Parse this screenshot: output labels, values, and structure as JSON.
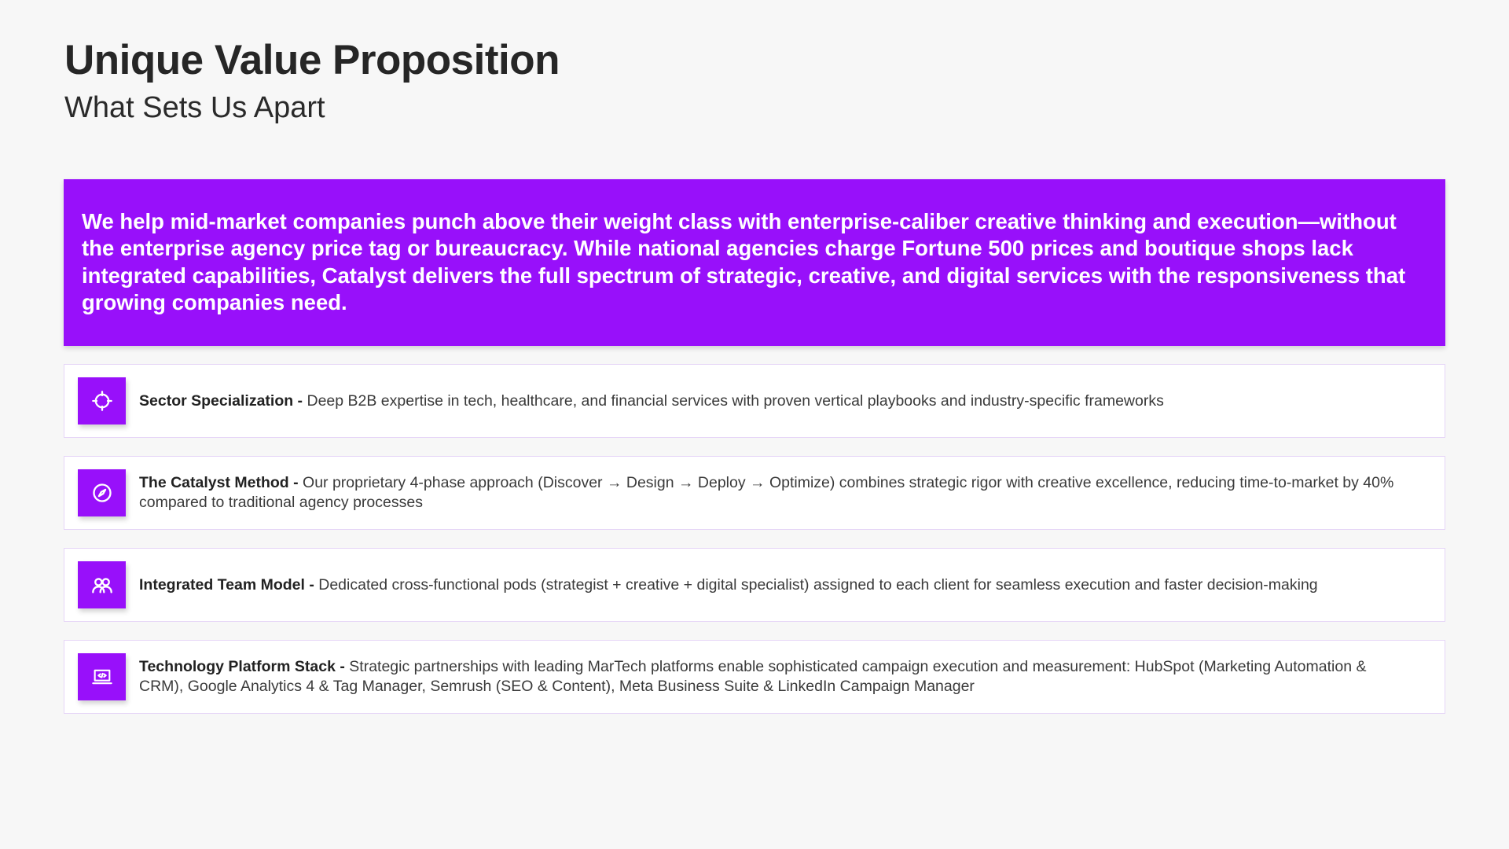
{
  "header": {
    "title": "Unique Value Proposition",
    "subtitle": "What Sets Us Apart"
  },
  "hero": {
    "text": "We help mid-market companies punch above their weight class with enterprise-caliber creative thinking and execution—without the enterprise agency price tag or bureaucracy. While national agencies charge Fortune 500 prices and boutique shops lack integrated capabilities, Catalyst delivers the full spectrum of strategic, creative, and digital services with the responsiveness that growing companies need.",
    "background": "#9810fa"
  },
  "features": [
    {
      "icon": "crosshair-icon",
      "title": "Sector Specialization - ",
      "text": "Deep B2B expertise in tech, healthcare, and financial services with proven vertical playbooks and industry-specific frameworks"
    },
    {
      "icon": "compass-icon",
      "title": "The Catalyst Method - ",
      "text": "Our proprietary 4-phase approach (Discover → Design → Deploy → Optimize) combines strategic rigor with creative excellence, reducing time-to-market by 40% compared to traditional agency processes"
    },
    {
      "icon": "users-icon",
      "title": "Integrated Team Model - ",
      "text": "Dedicated cross-functional pods (strategist + creative + digital specialist) assigned to each client for seamless execution and faster decision-making"
    },
    {
      "icon": "laptop-code-icon",
      "title": "Technology Platform Stack - ",
      "text": "Strategic partnerships with leading MarTech platforms enable sophisticated campaign execution and measurement: HubSpot (Marketing Automation & CRM), Google Analytics 4 & Tag Manager, Semrush (SEO & Content), Meta Business Suite & LinkedIn Campaign Manager"
    }
  ]
}
